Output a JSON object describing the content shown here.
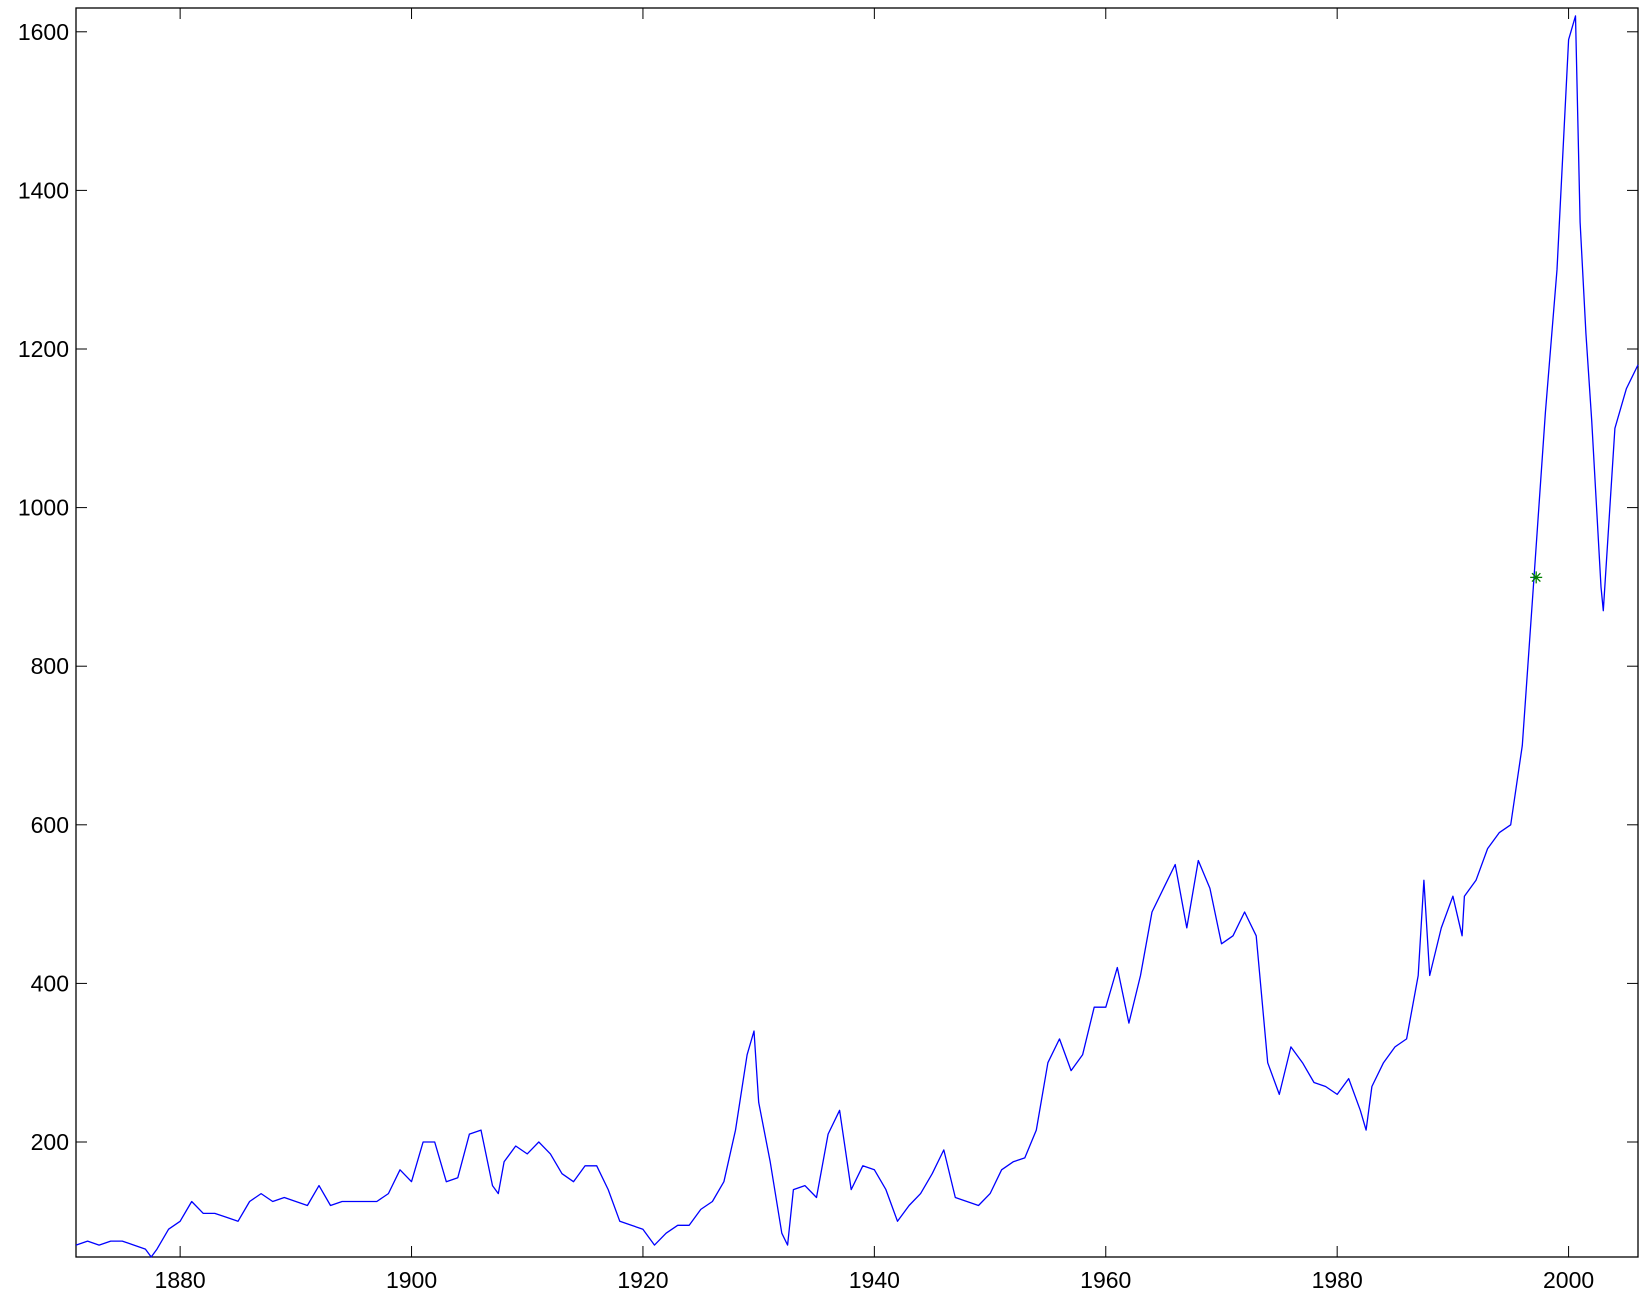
{
  "chart_data": {
    "type": "line",
    "title": "",
    "xlabel": "",
    "ylabel": "",
    "xlim": [
      1871,
      2006
    ],
    "ylim": [
      55,
      1630
    ],
    "x_ticks": [
      1880,
      1900,
      1920,
      1940,
      1960,
      1980,
      2000
    ],
    "y_ticks": [
      200,
      400,
      600,
      800,
      1000,
      1200,
      1400,
      1600
    ],
    "x_tick_labels": [
      "1880",
      "1900",
      "1920",
      "1940",
      "1960",
      "1980",
      "2000"
    ],
    "y_tick_labels": [
      "200",
      "400",
      "600",
      "800",
      "1000",
      "1200",
      "1400",
      "1600"
    ],
    "grid": false,
    "line_color": "#0000ff",
    "marker_color": "#008000",
    "series": [
      {
        "x": [
          1871.0,
          1872.0,
          1873.0,
          1874.0,
          1875.0,
          1876.0,
          1877.0,
          1877.5,
          1878.0,
          1879.0,
          1880.0,
          1881.0,
          1882.0,
          1883.0,
          1884.0,
          1885.0,
          1886.0,
          1887.0,
          1888.0,
          1889.0,
          1890.0,
          1891.0,
          1892.0,
          1893.0,
          1894.0,
          1895.0,
          1896.0,
          1897.0,
          1898.0,
          1899.0,
          1900.0,
          1901.0,
          1902.0,
          1903.0,
          1904.0,
          1905.0,
          1906.0,
          1907.0,
          1907.5,
          1908.0,
          1909.0,
          1910.0,
          1911.0,
          1912.0,
          1913.0,
          1914.0,
          1915.0,
          1916.0,
          1917.0,
          1918.0,
          1919.0,
          1920.0,
          1921.0,
          1922.0,
          1923.0,
          1924.0,
          1925.0,
          1926.0,
          1927.0,
          1928.0,
          1929.0,
          1929.6,
          1930.0,
          1931.0,
          1932.0,
          1932.5,
          1933.0,
          1934.0,
          1935.0,
          1936.0,
          1937.0,
          1938.0,
          1939.0,
          1940.0,
          1941.0,
          1942.0,
          1943.0,
          1944.0,
          1945.0,
          1946.0,
          1947.0,
          1948.0,
          1949.0,
          1950.0,
          1951.0,
          1952.0,
          1953.0,
          1954.0,
          1955.0,
          1956.0,
          1957.0,
          1958.0,
          1959.0,
          1960.0,
          1961.0,
          1962.0,
          1963.0,
          1964.0,
          1965.0,
          1966.0,
          1967.0,
          1968.0,
          1969.0,
          1970.0,
          1971.0,
          1972.0,
          1973.0,
          1974.0,
          1975.0,
          1976.0,
          1977.0,
          1978.0,
          1979.0,
          1980.0,
          1981.0,
          1982.0,
          1982.5,
          1983.0,
          1984.0,
          1985.0,
          1986.0,
          1987.0,
          1987.5,
          1988.0,
          1989.0,
          1990.0,
          1990.8,
          1991.0,
          1992.0,
          1993.0,
          1994.0,
          1995.0,
          1996.0,
          1997.0,
          1998.0,
          1999.0,
          2000.0,
          2000.6,
          2001.0,
          2001.5,
          2002.0,
          2002.8,
          2003.0,
          2004.0,
          2005.0,
          2006.0
        ],
        "y": [
          70,
          75,
          70,
          75,
          75,
          70,
          65,
          55,
          65,
          90,
          100,
          125,
          110,
          110,
          105,
          100,
          125,
          135,
          125,
          130,
          125,
          120,
          145,
          120,
          125,
          125,
          125,
          125,
          135,
          165,
          150,
          200,
          200,
          150,
          155,
          210,
          215,
          145,
          135,
          175,
          195,
          185,
          200,
          185,
          160,
          150,
          170,
          170,
          140,
          100,
          95,
          90,
          70,
          85,
          95,
          95,
          115,
          125,
          150,
          215,
          310,
          340,
          250,
          175,
          85,
          70,
          140,
          145,
          130,
          210,
          240,
          140,
          170,
          165,
          140,
          100,
          120,
          135,
          160,
          190,
          130,
          125,
          120,
          135,
          165,
          175,
          180,
          215,
          300,
          330,
          290,
          310,
          370,
          370,
          420,
          350,
          410,
          490,
          520,
          550,
          470,
          555,
          520,
          450,
          460,
          490,
          460,
          300,
          260,
          320,
          300,
          275,
          270,
          260,
          280,
          240,
          215,
          270,
          300,
          320,
          330,
          410,
          530,
          410,
          470,
          510,
          460,
          510,
          530,
          570,
          590,
          600,
          700,
          910,
          1120,
          1300,
          1590,
          1620,
          1360,
          1220,
          1110,
          900,
          870,
          1100,
          1150,
          1180
        ]
      }
    ],
    "marker": {
      "x": 1997.2,
      "y": 912,
      "symbol": "*"
    }
  }
}
